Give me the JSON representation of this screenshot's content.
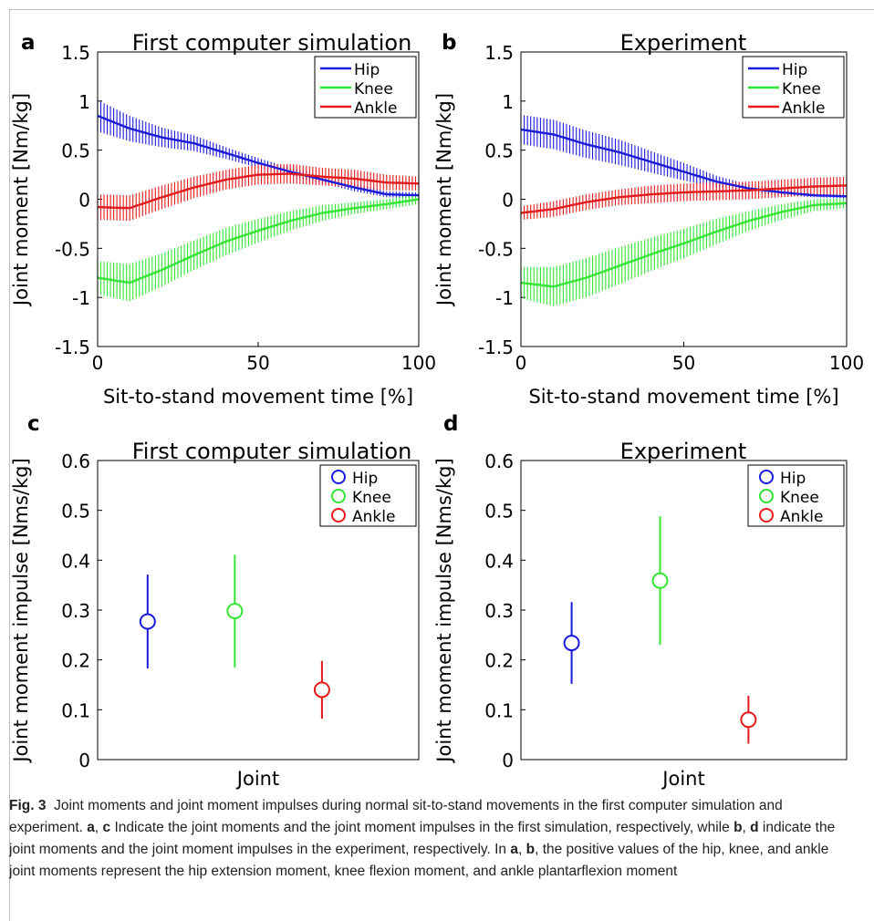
{
  "panels": [
    {
      "letter": "a",
      "title": "First computer simulation"
    },
    {
      "letter": "b",
      "title": "Experiment"
    },
    {
      "letter": "c",
      "title": "First computer simulation"
    },
    {
      "letter": "d",
      "title": "Experiment"
    }
  ],
  "caption": {
    "fig_label": "Fig. 3",
    "segments": [
      {
        "t": "Joint moments and joint moment impulses during normal sit-to-stand movements in the first computer simulation and experiment. ",
        "b": false
      },
      {
        "t": "a",
        "b": true
      },
      {
        "t": ", ",
        "b": false
      },
      {
        "t": "c",
        "b": true
      },
      {
        "t": " Indicate the joint moments and the joint moment impulses in the first simulation, respectively, while ",
        "b": false
      },
      {
        "t": "b",
        "b": true
      },
      {
        "t": ", ",
        "b": false
      },
      {
        "t": "d",
        "b": true
      },
      {
        "t": " indicate the joint moments and the joint moment impulses in the experiment, respectively. In ",
        "b": false
      },
      {
        "t": "a",
        "b": true
      },
      {
        "t": ", ",
        "b": false
      },
      {
        "t": "b",
        "b": true
      },
      {
        "t": ", the positive values of the hip, knee, and ankle joint moments represent the hip extension moment, knee flexion moment, and ankle plantarflexion moment",
        "b": false
      }
    ]
  },
  "colors": {
    "hip": "#1a1adc",
    "knee": "#33e633",
    "ankle": "#e61a1a"
  },
  "chart_data": [
    {
      "id": "a",
      "type": "line",
      "title": "First computer simulation",
      "xlabel": "Sit-to-stand movement time [%]",
      "ylabel": "Joint moment [Nm/kg]",
      "xlim": [
        0,
        100
      ],
      "ylim": [
        -1.5,
        1.5
      ],
      "xticks": [
        "0",
        "50",
        "100"
      ],
      "yticks": [
        "-1.5",
        "-1",
        "-0.5",
        "0",
        "0.5",
        "1",
        "1.5"
      ],
      "legend": "top-right",
      "x": [
        0,
        10,
        20,
        30,
        40,
        50,
        60,
        70,
        80,
        90,
        100
      ],
      "series": [
        {
          "name": "Hip",
          "values": [
            0.85,
            0.72,
            0.63,
            0.57,
            0.47,
            0.37,
            0.28,
            0.2,
            0.12,
            0.05,
            0.04
          ],
          "sd": [
            0.16,
            0.13,
            0.1,
            0.08,
            0.06,
            0.05,
            0.04,
            0.04,
            0.04,
            0.03,
            0.03
          ]
        },
        {
          "name": "Knee",
          "values": [
            -0.8,
            -0.85,
            -0.72,
            -0.57,
            -0.43,
            -0.32,
            -0.22,
            -0.14,
            -0.09,
            -0.05,
            0.0
          ],
          "sd": [
            0.17,
            0.19,
            0.17,
            0.15,
            0.14,
            0.12,
            0.1,
            0.08,
            0.06,
            0.05,
            0.05
          ]
        },
        {
          "name": "Ankle",
          "values": [
            -0.08,
            -0.09,
            0.02,
            0.12,
            0.2,
            0.25,
            0.26,
            0.23,
            0.21,
            0.17,
            0.16
          ],
          "sd": [
            0.13,
            0.13,
            0.12,
            0.11,
            0.1,
            0.1,
            0.1,
            0.09,
            0.09,
            0.08,
            0.07
          ]
        }
      ]
    },
    {
      "id": "b",
      "type": "line",
      "title": "Experiment",
      "xlabel": "Sit-to-stand movement time [%]",
      "ylabel": "Joint moment [Nm/kg]",
      "xlim": [
        0,
        100
      ],
      "ylim": [
        -1.5,
        1.5
      ],
      "xticks": [
        "0",
        "50",
        "100"
      ],
      "yticks": [
        "-1.5",
        "-1",
        "-0.5",
        "0",
        "0.5",
        "1",
        "1.5"
      ],
      "legend": "top-right",
      "x": [
        0,
        10,
        20,
        30,
        40,
        50,
        60,
        70,
        80,
        90,
        100
      ],
      "series": [
        {
          "name": "Hip",
          "values": [
            0.71,
            0.66,
            0.56,
            0.48,
            0.38,
            0.28,
            0.18,
            0.11,
            0.07,
            0.04,
            0.03
          ],
          "sd": [
            0.15,
            0.15,
            0.14,
            0.13,
            0.11,
            0.09,
            0.06,
            0.04,
            0.03,
            0.02,
            0.02
          ]
        },
        {
          "name": "Knee",
          "values": [
            -0.85,
            -0.89,
            -0.8,
            -0.68,
            -0.56,
            -0.45,
            -0.33,
            -0.22,
            -0.13,
            -0.06,
            -0.04
          ],
          "sd": [
            0.16,
            0.2,
            0.2,
            0.19,
            0.17,
            0.15,
            0.13,
            0.1,
            0.08,
            0.06,
            0.05
          ]
        },
        {
          "name": "Ankle",
          "values": [
            -0.14,
            -0.1,
            -0.03,
            0.02,
            0.05,
            0.07,
            0.08,
            0.09,
            0.11,
            0.13,
            0.14
          ],
          "sd": [
            0.07,
            0.08,
            0.08,
            0.08,
            0.09,
            0.09,
            0.09,
            0.09,
            0.09,
            0.09,
            0.09
          ]
        }
      ]
    },
    {
      "id": "c",
      "type": "scatter",
      "title": "First computer simulation",
      "xlabel": "Joint",
      "ylabel": "Joint moment impulse [Nms/kg]",
      "ylim": [
        0,
        0.6
      ],
      "yticks": [
        "0",
        "0.1",
        "0.2",
        "0.3",
        "0.4",
        "0.5",
        "0.6"
      ],
      "legend": "top-right",
      "series": [
        {
          "name": "Hip",
          "x": 1,
          "value": 0.277,
          "err_low": 0.183,
          "err_high": 0.371
        },
        {
          "name": "Knee",
          "x": 2,
          "value": 0.298,
          "err_low": 0.185,
          "err_high": 0.411
        },
        {
          "name": "Ankle",
          "x": 3,
          "value": 0.14,
          "err_low": 0.082,
          "err_high": 0.198
        }
      ]
    },
    {
      "id": "d",
      "type": "scatter",
      "title": "Experiment",
      "xlabel": "Joint",
      "ylabel": "Joint moment impulse [Nms/kg]",
      "ylim": [
        0,
        0.6
      ],
      "yticks": [
        "0",
        "0.1",
        "0.2",
        "0.3",
        "0.4",
        "0.5",
        "0.6"
      ],
      "legend": "top-right",
      "series": [
        {
          "name": "Hip",
          "x": 1,
          "value": 0.234,
          "err_low": 0.152,
          "err_high": 0.316
        },
        {
          "name": "Knee",
          "x": 2,
          "value": 0.359,
          "err_low": 0.23,
          "err_high": 0.488
        },
        {
          "name": "Ankle",
          "x": 3,
          "value": 0.08,
          "err_low": 0.032,
          "err_high": 0.128
        }
      ]
    }
  ]
}
